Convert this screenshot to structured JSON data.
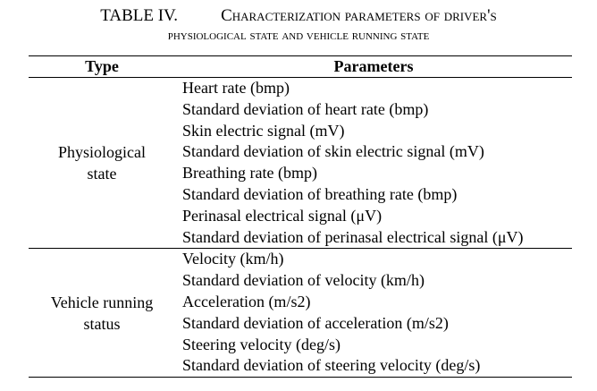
{
  "caption": {
    "label": "TABLE IV.",
    "title_line1": "Characterization parameters of driver's",
    "title_line2": "physiological state and vehicle running state"
  },
  "table": {
    "headers": [
      "Type",
      "Parameters"
    ],
    "groups": [
      {
        "type_line1": "Physiological",
        "type_line2": "state",
        "parameters": [
          "Heart rate (bmp)",
          "Standard deviation of heart rate (bmp)",
          "Skin electric signal (mV)",
          "Standard deviation of skin electric signal (mV)",
          "Breathing rate (bmp)",
          "Standard deviation of breathing rate (bmp)",
          "Perinasal electrical signal (μV)",
          "Standard deviation of perinasal electrical signal (μV)"
        ]
      },
      {
        "type_line1": "Vehicle running",
        "type_line2": "status",
        "parameters": [
          "Velocity (km/h)",
          "Standard deviation of velocity (km/h)",
          "Acceleration (m/s2)",
          "Standard deviation of acceleration (m/s2)",
          "Steering velocity (deg/s)",
          "Standard deviation of steering velocity (deg/s)"
        ]
      }
    ]
  }
}
